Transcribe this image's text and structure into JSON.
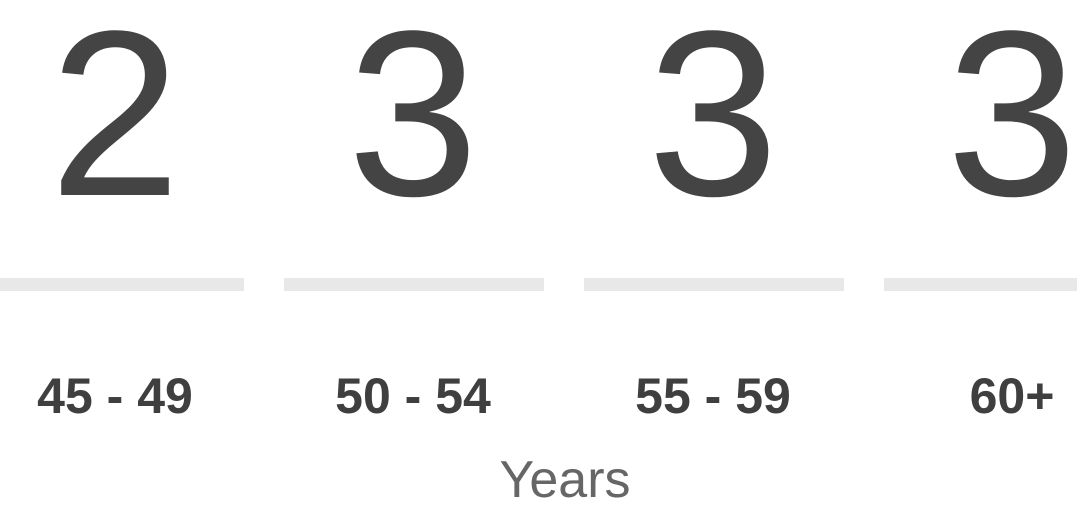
{
  "items": [
    {
      "count": 2,
      "label": "45 - 49"
    },
    {
      "count": 3,
      "label": "50 - 54"
    },
    {
      "count": 3,
      "label": "55 - 59"
    },
    {
      "count": 3,
      "label": "60+"
    }
  ],
  "footer": "Years"
}
